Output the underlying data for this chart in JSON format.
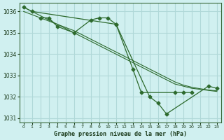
{
  "title": "Graphe pression niveau de la mer (hPa)",
  "bg_color": "#d0f0f0",
  "grid_color": "#b0d8d8",
  "line_color": "#2d6a2d",
  "xlim": [
    -0.5,
    23.5
  ],
  "ylim": [
    1030.8,
    1036.4
  ],
  "yticks": [
    1031,
    1032,
    1033,
    1034,
    1035,
    1036
  ],
  "xticks": [
    0,
    1,
    2,
    3,
    4,
    5,
    6,
    7,
    8,
    9,
    10,
    11,
    12,
    13,
    14,
    15,
    16,
    17,
    18,
    19,
    20,
    21,
    22,
    23
  ],
  "line1_x": [
    0,
    1,
    11,
    15,
    16,
    17,
    22,
    23
  ],
  "line1_y": [
    1036.2,
    1036.0,
    1035.4,
    1032.0,
    1031.7,
    1031.2,
    1032.5,
    1032.4
  ],
  "line2_x": [
    2,
    3,
    4,
    6,
    8,
    9,
    10,
    11,
    13,
    14,
    18,
    19,
    20
  ],
  "line2_y": [
    1035.7,
    1035.7,
    1035.3,
    1035.0,
    1035.6,
    1035.7,
    1035.7,
    1035.4,
    1033.3,
    1032.2,
    1032.2,
    1032.2,
    1032.2
  ],
  "line3_x": [
    0,
    1,
    2,
    3,
    4,
    5,
    6,
    7,
    8,
    9,
    10,
    11,
    12,
    13,
    14,
    15,
    16,
    17,
    18,
    19,
    20,
    21,
    22,
    23
  ],
  "line3_y": [
    1036.2,
    1036.0,
    1035.8,
    1035.6,
    1035.4,
    1035.2,
    1035.0,
    1034.8,
    1034.6,
    1034.4,
    1034.2,
    1034.0,
    1033.8,
    1033.6,
    1033.4,
    1033.2,
    1033.0,
    1032.8,
    1032.6,
    1032.5,
    1032.4,
    1032.35,
    1032.3,
    1032.25
  ],
  "line4_x": [
    0,
    1,
    2,
    3,
    4,
    5,
    6,
    7,
    8,
    9,
    10,
    11,
    12,
    13,
    14,
    15,
    16,
    17,
    18,
    19,
    20,
    21,
    22,
    23
  ],
  "line4_y": [
    1036.0,
    1035.85,
    1035.7,
    1035.55,
    1035.4,
    1035.25,
    1035.1,
    1034.9,
    1034.7,
    1034.5,
    1034.3,
    1034.1,
    1033.9,
    1033.7,
    1033.5,
    1033.3,
    1033.1,
    1032.9,
    1032.7,
    1032.55,
    1032.45,
    1032.38,
    1032.32,
    1032.28
  ]
}
